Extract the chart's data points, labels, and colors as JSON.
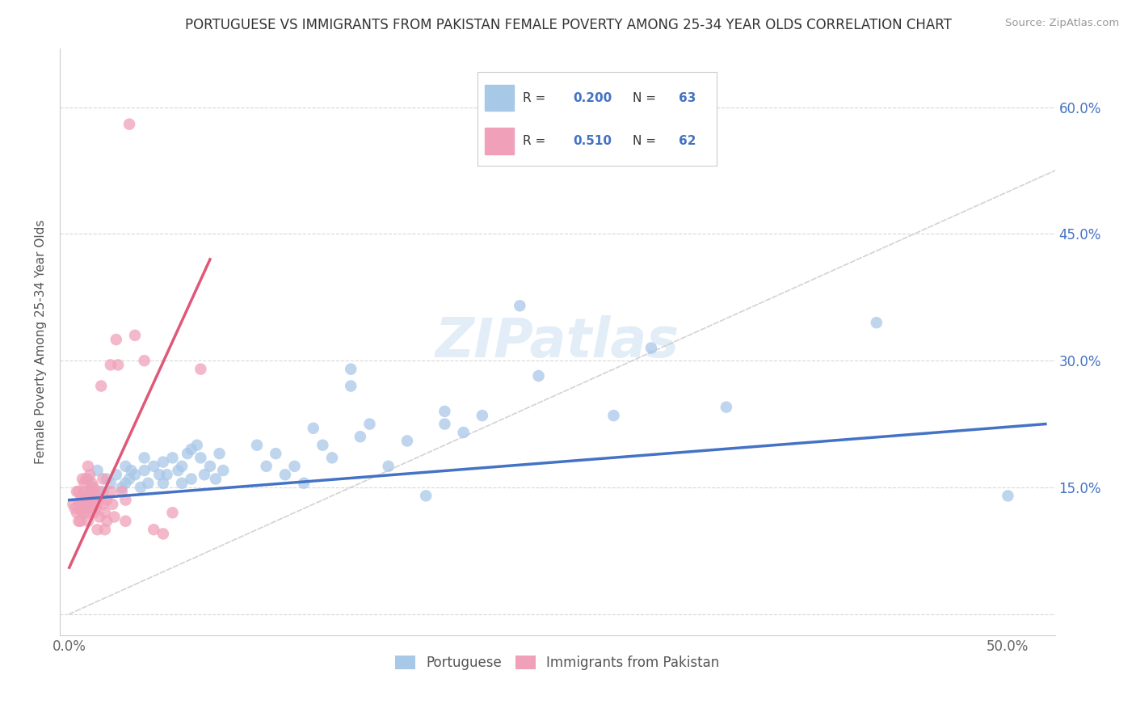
{
  "title": "PORTUGUESE VS IMMIGRANTS FROM PAKISTAN FEMALE POVERTY AMONG 25-34 YEAR OLDS CORRELATION CHART",
  "source": "Source: ZipAtlas.com",
  "ylabel": "Female Poverty Among 25-34 Year Olds",
  "xlim": [
    -0.005,
    0.525
  ],
  "ylim": [
    -0.025,
    0.67
  ],
  "blue_color": "#a8c8e8",
  "pink_color": "#f0a0b8",
  "blue_line_color": "#4472c4",
  "pink_line_color": "#e05878",
  "diagonal_color": "#c8c8c8",
  "R_blue": 0.2,
  "N_blue": 63,
  "R_pink": 0.51,
  "N_pink": 62,
  "legend_label_blue": "Portuguese",
  "legend_label_pink": "Immigrants from Pakistan",
  "watermark": "ZIPatlas",
  "blue_scatter": [
    [
      0.01,
      0.16
    ],
    [
      0.012,
      0.15
    ],
    [
      0.015,
      0.17
    ],
    [
      0.018,
      0.145
    ],
    [
      0.02,
      0.16
    ],
    [
      0.022,
      0.155
    ],
    [
      0.025,
      0.165
    ],
    [
      0.028,
      0.15
    ],
    [
      0.03,
      0.155
    ],
    [
      0.03,
      0.175
    ],
    [
      0.032,
      0.16
    ],
    [
      0.033,
      0.17
    ],
    [
      0.035,
      0.165
    ],
    [
      0.038,
      0.15
    ],
    [
      0.04,
      0.17
    ],
    [
      0.04,
      0.185
    ],
    [
      0.042,
      0.155
    ],
    [
      0.045,
      0.175
    ],
    [
      0.048,
      0.165
    ],
    [
      0.05,
      0.155
    ],
    [
      0.05,
      0.18
    ],
    [
      0.052,
      0.165
    ],
    [
      0.055,
      0.185
    ],
    [
      0.058,
      0.17
    ],
    [
      0.06,
      0.175
    ],
    [
      0.06,
      0.155
    ],
    [
      0.063,
      0.19
    ],
    [
      0.065,
      0.16
    ],
    [
      0.065,
      0.195
    ],
    [
      0.068,
      0.2
    ],
    [
      0.07,
      0.185
    ],
    [
      0.072,
      0.165
    ],
    [
      0.075,
      0.175
    ],
    [
      0.078,
      0.16
    ],
    [
      0.08,
      0.19
    ],
    [
      0.082,
      0.17
    ],
    [
      0.1,
      0.2
    ],
    [
      0.105,
      0.175
    ],
    [
      0.11,
      0.19
    ],
    [
      0.115,
      0.165
    ],
    [
      0.12,
      0.175
    ],
    [
      0.125,
      0.155
    ],
    [
      0.13,
      0.22
    ],
    [
      0.135,
      0.2
    ],
    [
      0.14,
      0.185
    ],
    [
      0.15,
      0.29
    ],
    [
      0.15,
      0.27
    ],
    [
      0.155,
      0.21
    ],
    [
      0.16,
      0.225
    ],
    [
      0.17,
      0.175
    ],
    [
      0.18,
      0.205
    ],
    [
      0.19,
      0.14
    ],
    [
      0.2,
      0.24
    ],
    [
      0.2,
      0.225
    ],
    [
      0.21,
      0.215
    ],
    [
      0.22,
      0.235
    ],
    [
      0.24,
      0.365
    ],
    [
      0.25,
      0.282
    ],
    [
      0.29,
      0.235
    ],
    [
      0.31,
      0.315
    ],
    [
      0.35,
      0.245
    ],
    [
      0.43,
      0.345
    ],
    [
      0.5,
      0.14
    ]
  ],
  "pink_scatter": [
    [
      0.002,
      0.13
    ],
    [
      0.003,
      0.125
    ],
    [
      0.004,
      0.12
    ],
    [
      0.004,
      0.145
    ],
    [
      0.005,
      0.13
    ],
    [
      0.005,
      0.11
    ],
    [
      0.005,
      0.145
    ],
    [
      0.006,
      0.125
    ],
    [
      0.006,
      0.135
    ],
    [
      0.006,
      0.11
    ],
    [
      0.007,
      0.12
    ],
    [
      0.007,
      0.14
    ],
    [
      0.007,
      0.16
    ],
    [
      0.007,
      0.13
    ],
    [
      0.008,
      0.125
    ],
    [
      0.008,
      0.145
    ],
    [
      0.008,
      0.155
    ],
    [
      0.009,
      0.135
    ],
    [
      0.009,
      0.12
    ],
    [
      0.009,
      0.16
    ],
    [
      0.01,
      0.14
    ],
    [
      0.01,
      0.125
    ],
    [
      0.01,
      0.175
    ],
    [
      0.01,
      0.11
    ],
    [
      0.011,
      0.13
    ],
    [
      0.011,
      0.145
    ],
    [
      0.011,
      0.165
    ],
    [
      0.012,
      0.125
    ],
    [
      0.012,
      0.14
    ],
    [
      0.012,
      0.155
    ],
    [
      0.013,
      0.12
    ],
    [
      0.013,
      0.135
    ],
    [
      0.013,
      0.15
    ],
    [
      0.014,
      0.14
    ],
    [
      0.014,
      0.125
    ],
    [
      0.015,
      0.13
    ],
    [
      0.015,
      0.1
    ],
    [
      0.016,
      0.145
    ],
    [
      0.016,
      0.115
    ],
    [
      0.017,
      0.27
    ],
    [
      0.018,
      0.16
    ],
    [
      0.018,
      0.13
    ],
    [
      0.019,
      0.12
    ],
    [
      0.019,
      0.1
    ],
    [
      0.02,
      0.135
    ],
    [
      0.02,
      0.11
    ],
    [
      0.022,
      0.295
    ],
    [
      0.022,
      0.145
    ],
    [
      0.023,
      0.13
    ],
    [
      0.024,
      0.115
    ],
    [
      0.025,
      0.325
    ],
    [
      0.026,
      0.295
    ],
    [
      0.028,
      0.145
    ],
    [
      0.03,
      0.135
    ],
    [
      0.03,
      0.11
    ],
    [
      0.032,
      0.58
    ],
    [
      0.035,
      0.33
    ],
    [
      0.04,
      0.3
    ],
    [
      0.045,
      0.1
    ],
    [
      0.05,
      0.095
    ],
    [
      0.055,
      0.12
    ],
    [
      0.07,
      0.29
    ]
  ],
  "y_ticks": [
    0.0,
    0.15,
    0.3,
    0.45,
    0.6
  ],
  "y_tick_labels_right": [
    "",
    "15.0%",
    "30.0%",
    "45.0%",
    "60.0%"
  ],
  "x_ticks": [
    0.0,
    0.1,
    0.2,
    0.3,
    0.4,
    0.5
  ],
  "x_tick_labels": [
    "0.0%",
    "",
    "",
    "",
    "",
    "50.0%"
  ]
}
